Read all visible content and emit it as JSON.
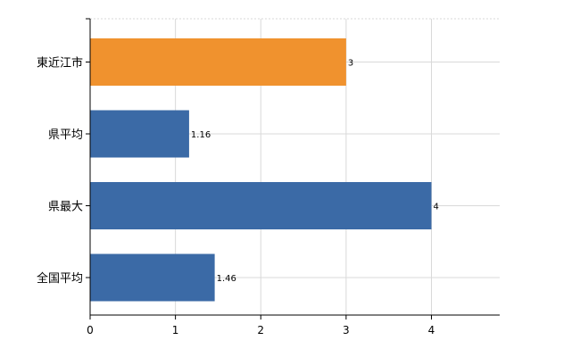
{
  "chart_data": {
    "type": "bar",
    "orientation": "horizontal",
    "categories": [
      "東近江市",
      "県平均",
      "県最大",
      "全国平均"
    ],
    "values": [
      3,
      1.16,
      4,
      1.46
    ],
    "value_labels": [
      "3",
      "1.16",
      "4",
      "1.46"
    ],
    "colors": [
      "#f0922e",
      "#3b6aa6",
      "#3b6aa6",
      "#3b6aa6"
    ],
    "xlim": [
      0,
      4.8
    ],
    "xticks": [
      0,
      1,
      2,
      3,
      4
    ],
    "xtick_labels": [
      "0",
      "1",
      "2",
      "3",
      "4"
    ],
    "grid": true,
    "title": "",
    "xlabel": "",
    "ylabel": ""
  }
}
